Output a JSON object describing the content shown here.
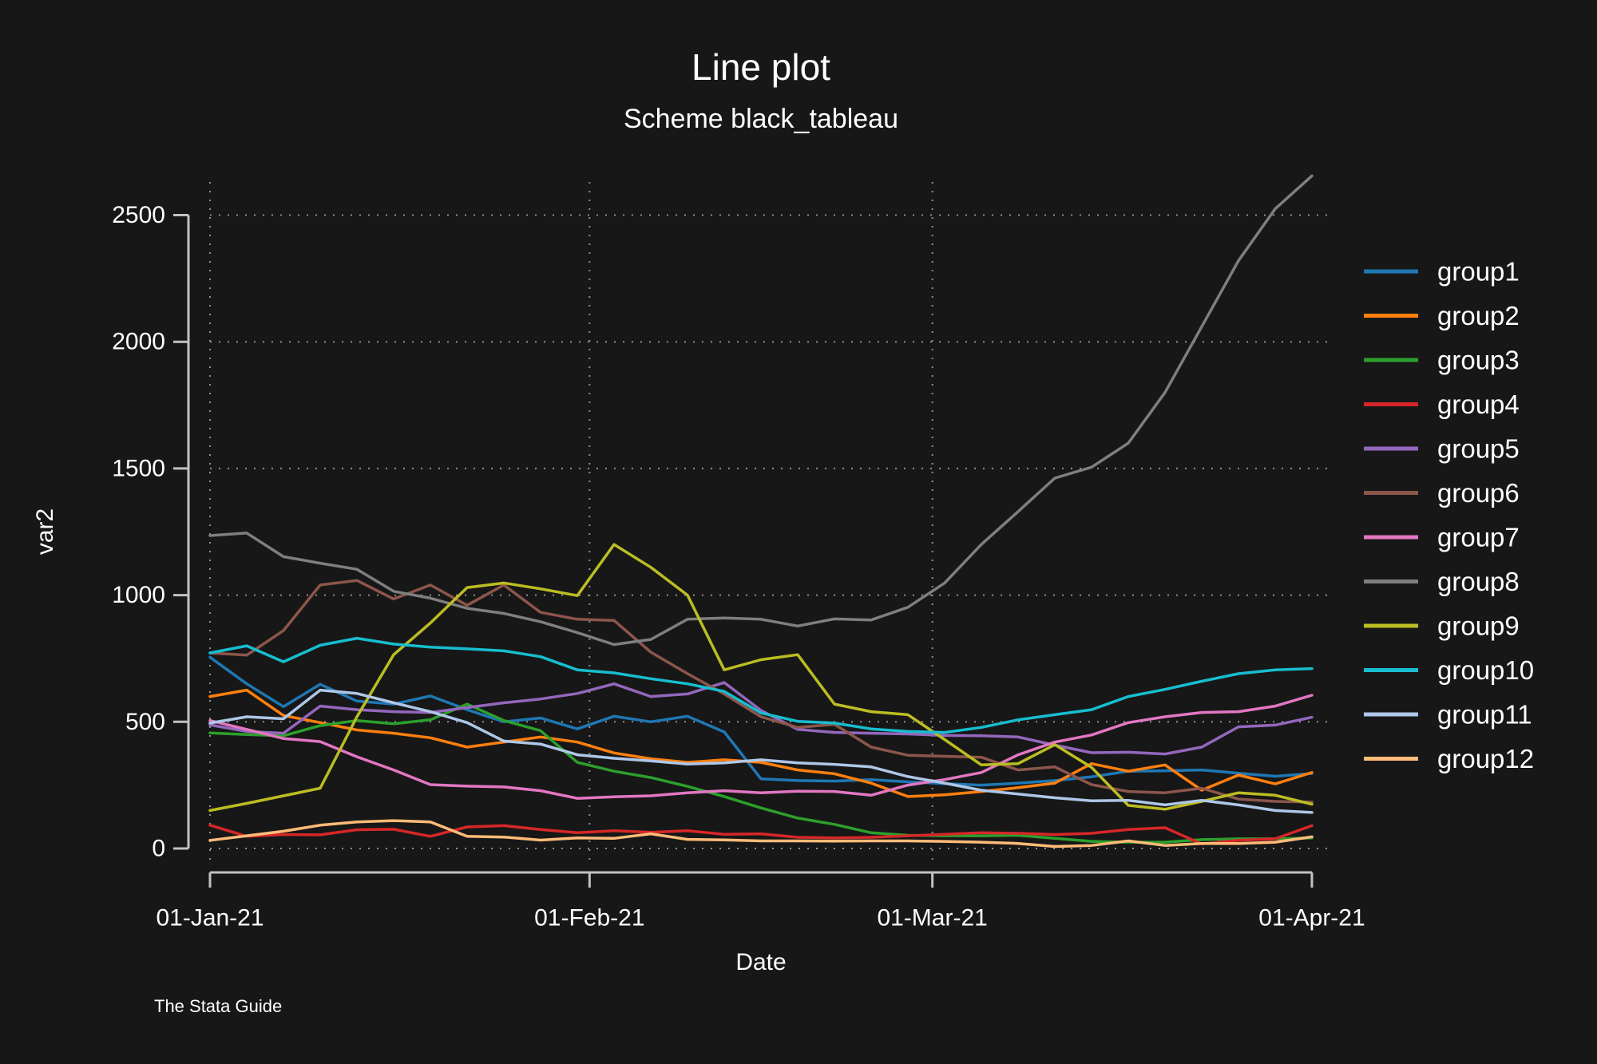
{
  "title": "Line plot",
  "subtitle": "Scheme black_tableau",
  "caption": "The Stata Guide",
  "colors": {
    "background": "#171717",
    "text": "#ffffff",
    "axis": "#c2c2c2",
    "grid": "#8f8f8f"
  },
  "y_axis": {
    "title": "var2",
    "tick_labels": [
      "0",
      "500",
      "1000",
      "1500",
      "2000",
      "2500"
    ],
    "tick_values": [
      0,
      500,
      1000,
      1500,
      2000,
      2500
    ]
  },
  "x_axis": {
    "title": "Date",
    "tick_labels": [
      "01-Jan-21",
      "01-Feb-21",
      "01-Mar-21",
      "01-Apr-21"
    ],
    "tick_days": [
      0,
      31,
      59,
      90
    ]
  },
  "legend": {
    "position": "right",
    "items": [
      {
        "label": "group1",
        "color": "#1f77b4"
      },
      {
        "label": "group2",
        "color": "#ff7f0e"
      },
      {
        "label": "group3",
        "color": "#2ca02c"
      },
      {
        "label": "group4",
        "color": "#d62728"
      },
      {
        "label": "group5",
        "color": "#9467bd"
      },
      {
        "label": "group6",
        "color": "#8c564b"
      },
      {
        "label": "group7",
        "color": "#e377c2"
      },
      {
        "label": "group8",
        "color": "#7f7f7f"
      },
      {
        "label": "group9",
        "color": "#bcbd22"
      },
      {
        "label": "group10",
        "color": "#17becf"
      },
      {
        "label": "group11",
        "color": "#aec7e8"
      },
      {
        "label": "group12",
        "color": "#ffbb78"
      }
    ]
  },
  "chart_data": {
    "type": "line",
    "title": "Line plot",
    "xlabel": "Date",
    "ylabel": "var2",
    "ylim": [
      0,
      2700
    ],
    "grid": true,
    "legend_position": "right",
    "x_unit": "days since 01-Jan-21",
    "days": [
      0,
      3,
      6,
      9,
      12,
      15,
      18,
      21,
      24,
      27,
      30,
      33,
      36,
      39,
      42,
      45,
      48,
      51,
      54,
      57,
      60,
      63,
      66,
      69,
      72,
      75,
      78,
      81,
      84,
      87,
      90
    ],
    "vertical_grid_days": [
      0,
      31,
      59
    ],
    "series": [
      {
        "name": "group1",
        "color": "#1f77b4",
        "values": [
          755,
          650,
          560,
          648,
          582,
          570,
          602,
          548,
          500,
          515,
          472,
          522,
          500,
          522,
          460,
          275,
          268,
          266,
          272,
          263,
          256,
          250,
          258,
          268,
          283,
          305,
          307,
          310,
          297,
          285,
          296
        ]
      },
      {
        "name": "group2",
        "color": "#ff7f0e",
        "values": [
          600,
          625,
          525,
          497,
          468,
          455,
          437,
          400,
          420,
          440,
          420,
          377,
          354,
          340,
          350,
          340,
          310,
          295,
          258,
          205,
          212,
          225,
          240,
          258,
          335,
          305,
          330,
          230,
          290,
          255,
          300
        ]
      },
      {
        "name": "group3",
        "color": "#2ca02c",
        "values": [
          456,
          450,
          445,
          485,
          505,
          492,
          508,
          570,
          505,
          465,
          340,
          305,
          280,
          245,
          205,
          160,
          120,
          95,
          62,
          52,
          50,
          50,
          52,
          40,
          28,
          25,
          25,
          35,
          38,
          38,
          42
        ]
      },
      {
        "name": "group4",
        "color": "#d62728",
        "values": [
          92,
          48,
          55,
          54,
          74,
          76,
          48,
          85,
          90,
          75,
          62,
          70,
          64,
          70,
          56,
          58,
          44,
          42,
          44,
          50,
          56,
          62,
          60,
          55,
          60,
          75,
          82,
          18,
          32,
          38,
          90
        ]
      },
      {
        "name": "group5",
        "color": "#9467bd",
        "values": [
          488,
          462,
          455,
          562,
          548,
          540,
          537,
          556,
          575,
          590,
          612,
          650,
          600,
          610,
          655,
          545,
          470,
          458,
          455,
          452,
          446,
          445,
          440,
          408,
          378,
          380,
          373,
          400,
          480,
          487,
          518
        ]
      },
      {
        "name": "group6",
        "color": "#8c564b",
        "values": [
          772,
          763,
          860,
          1040,
          1058,
          985,
          1040,
          960,
          1040,
          932,
          905,
          900,
          775,
          690,
          610,
          520,
          478,
          490,
          400,
          368,
          364,
          360,
          310,
          322,
          252,
          225,
          220,
          238,
          195,
          186,
          183
        ]
      },
      {
        "name": "group7",
        "color": "#e377c2",
        "values": [
          505,
          470,
          434,
          422,
          362,
          310,
          252,
          246,
          243,
          228,
          198,
          204,
          208,
          220,
          228,
          220,
          226,
          225,
          210,
          250,
          272,
          300,
          370,
          420,
          448,
          497,
          520,
          537,
          540,
          562,
          605
        ]
      },
      {
        "name": "group8",
        "color": "#7f7f7f",
        "values": [
          1235,
          1245,
          1152,
          1126,
          1102,
          1015,
          988,
          948,
          928,
          895,
          852,
          805,
          825,
          905,
          910,
          905,
          878,
          906,
          902,
          952,
          1048,
          1200,
          1330,
          1462,
          1505,
          1600,
          1800,
          2060,
          2320,
          2525,
          2655
        ]
      },
      {
        "name": "group9",
        "color": "#bcbd22",
        "values": [
          150,
          178,
          208,
          238,
          520,
          765,
          890,
          1030,
          1048,
          1025,
          998,
          1200,
          1110,
          1000,
          705,
          745,
          765,
          570,
          540,
          528,
          430,
          330,
          335,
          410,
          320,
          170,
          155,
          186,
          220,
          210,
          175
        ]
      },
      {
        "name": "group10",
        "color": "#17becf",
        "values": [
          772,
          800,
          737,
          802,
          830,
          807,
          795,
          788,
          780,
          757,
          705,
          693,
          670,
          650,
          620,
          535,
          502,
          495,
          472,
          462,
          458,
          478,
          508,
          528,
          548,
          600,
          628,
          660,
          690,
          705,
          710
        ]
      },
      {
        "name": "group11",
        "color": "#aec7e8",
        "values": [
          495,
          520,
          512,
          625,
          612,
          575,
          540,
          497,
          424,
          412,
          370,
          356,
          346,
          333,
          338,
          350,
          338,
          332,
          322,
          284,
          258,
          230,
          215,
          200,
          188,
          190,
          172,
          190,
          172,
          150,
          142
        ]
      },
      {
        "name": "group12",
        "color": "#ffbb78",
        "values": [
          32,
          50,
          68,
          92,
          105,
          110,
          105,
          48,
          45,
          33,
          42,
          40,
          58,
          36,
          34,
          30,
          30,
          29,
          30,
          30,
          28,
          25,
          20,
          8,
          12,
          30,
          12,
          20,
          20,
          25,
          46
        ]
      }
    ]
  }
}
